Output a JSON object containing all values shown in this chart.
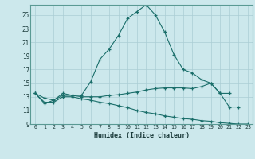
{
  "xlabel": "Humidex (Indice chaleur)",
  "bg_color": "#cce8ec",
  "grid_color": "#aacdd4",
  "line_color": "#1a6e6a",
  "xlim": [
    -0.5,
    23.5
  ],
  "ylim": [
    9,
    26.5
  ],
  "yticks": [
    9,
    11,
    13,
    15,
    17,
    19,
    21,
    23,
    25
  ],
  "xticks": [
    0,
    1,
    2,
    3,
    4,
    5,
    6,
    7,
    8,
    9,
    10,
    11,
    12,
    13,
    14,
    15,
    16,
    17,
    18,
    19,
    20,
    21,
    22,
    23
  ],
  "series1_x": [
    0,
    1,
    2,
    3,
    4,
    5,
    6,
    7,
    8,
    9,
    10,
    11,
    12,
    13,
    14,
    15,
    16,
    17,
    18,
    19,
    20,
    21,
    22
  ],
  "series1_y": [
    13.5,
    12.0,
    12.5,
    13.5,
    13.2,
    13.2,
    15.2,
    18.5,
    20.0,
    22.0,
    24.5,
    25.5,
    26.5,
    25.0,
    22.5,
    19.2,
    17.0,
    16.5,
    15.5,
    15.0,
    13.5,
    11.5,
    11.5
  ],
  "series2_x": [
    0,
    1,
    2,
    3,
    4,
    5,
    6,
    7,
    8,
    9,
    10,
    11,
    12,
    13,
    14,
    15,
    16,
    17,
    18,
    19,
    20,
    21
  ],
  "series2_y": [
    13.5,
    12.8,
    12.5,
    13.2,
    13.2,
    13.0,
    13.0,
    13.0,
    13.2,
    13.3,
    13.5,
    13.7,
    14.0,
    14.2,
    14.3,
    14.3,
    14.3,
    14.2,
    14.5,
    15.0,
    13.5,
    13.5
  ],
  "series3_x": [
    0,
    1,
    2,
    3,
    4,
    5,
    6,
    7,
    8,
    9,
    10,
    11,
    12,
    13,
    14,
    15,
    16,
    17,
    18,
    19,
    20,
    21,
    22,
    23
  ],
  "series3_y": [
    13.5,
    12.2,
    12.2,
    13.0,
    13.0,
    12.7,
    12.5,
    12.2,
    12.0,
    11.7,
    11.4,
    11.0,
    10.7,
    10.5,
    10.2,
    10.0,
    9.8,
    9.7,
    9.5,
    9.4,
    9.2,
    9.1,
    9.0,
    9.0
  ]
}
